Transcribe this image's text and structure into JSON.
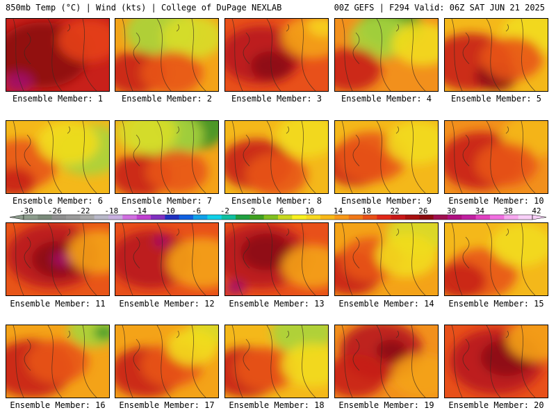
{
  "header": {
    "left": "850mb Temp (°C) | Wind (kts) | College of DuPage NEXLAB",
    "right": "00Z GEFS | F294 Valid: 06Z SAT JUN 21 2025"
  },
  "members": [
    {
      "label": "Ensemble Member: 1",
      "base": "#c8201a",
      "blobs": [
        [
          "#8c0d12",
          0.35,
          0.5,
          0.45
        ],
        [
          "#a3106a",
          0.12,
          0.88,
          0.14
        ],
        [
          "#e5401a",
          0.8,
          0.3,
          0.3
        ]
      ]
    },
    {
      "label": "Ensemble Member: 2",
      "base": "#f4a318",
      "blobs": [
        [
          "#a8d43c",
          0.45,
          0.18,
          0.35
        ],
        [
          "#d8dd2a",
          0.75,
          0.25,
          0.3
        ],
        [
          "#c8201a",
          0.2,
          0.75,
          0.3
        ],
        [
          "#e85518",
          0.55,
          0.75,
          0.3
        ]
      ]
    },
    {
      "label": "Ensemble Member: 3",
      "base": "#e8501a",
      "blobs": [
        [
          "#b8141c",
          0.35,
          0.5,
          0.4
        ],
        [
          "#8c0d12",
          0.45,
          0.65,
          0.2
        ],
        [
          "#f4a318",
          0.85,
          0.25,
          0.3
        ],
        [
          "#f7d21c",
          0.95,
          0.1,
          0.15
        ]
      ]
    },
    {
      "label": "Ensemble Member: 4",
      "base": "#f2901c",
      "blobs": [
        [
          "#4aa028",
          0.55,
          0.1,
          0.3
        ],
        [
          "#a8d43c",
          0.45,
          0.25,
          0.3
        ],
        [
          "#f2dc1c",
          0.85,
          0.35,
          0.3
        ],
        [
          "#c8201a",
          0.15,
          0.7,
          0.3
        ]
      ]
    },
    {
      "label": "Ensemble Member: 5",
      "base": "#f4b81a",
      "blobs": [
        [
          "#c8201a",
          0.25,
          0.6,
          0.4
        ],
        [
          "#8c0d12",
          0.5,
          0.8,
          0.2
        ],
        [
          "#f2dc1c",
          0.85,
          0.2,
          0.3
        ],
        [
          "#e85518",
          0.65,
          0.55,
          0.3
        ]
      ]
    },
    {
      "label": "Ensemble Member: 6",
      "base": "#f4b81a",
      "blobs": [
        [
          "#a8d43c",
          0.8,
          0.4,
          0.35
        ],
        [
          "#e85518",
          0.15,
          0.6,
          0.35
        ],
        [
          "#c8201a",
          0.08,
          0.85,
          0.2
        ],
        [
          "#f2dc1c",
          0.6,
          0.3,
          0.3
        ]
      ]
    },
    {
      "label": "Ensemble Member: 7",
      "base": "#f4a318",
      "blobs": [
        [
          "#3a9628",
          0.75,
          0.05,
          0.35
        ],
        [
          "#a8d43c",
          0.5,
          0.2,
          0.35
        ],
        [
          "#d8dd2a",
          0.3,
          0.15,
          0.3
        ],
        [
          "#c8201a",
          0.25,
          0.75,
          0.3
        ],
        [
          "#e85518",
          0.6,
          0.7,
          0.3
        ]
      ]
    },
    {
      "label": "Ensemble Member: 8",
      "base": "#f4b81a",
      "blobs": [
        [
          "#c8201a",
          0.3,
          0.6,
          0.35
        ],
        [
          "#e85518",
          0.5,
          0.75,
          0.3
        ],
        [
          "#f2dc1c",
          0.8,
          0.2,
          0.3
        ]
      ]
    },
    {
      "label": "Ensemble Member: 9",
      "base": "#f4b81a",
      "blobs": [
        [
          "#c8201a",
          0.2,
          0.6,
          0.3
        ],
        [
          "#e85518",
          0.35,
          0.5,
          0.35
        ],
        [
          "#f2dc1c",
          0.8,
          0.3,
          0.3
        ]
      ]
    },
    {
      "label": "Ensemble Member: 10",
      "base": "#f2901c",
      "blobs": [
        [
          "#c8201a",
          0.35,
          0.55,
          0.4
        ],
        [
          "#f4b81a",
          0.85,
          0.2,
          0.3
        ],
        [
          "#e85518",
          0.6,
          0.6,
          0.3
        ]
      ]
    },
    {
      "label": "Ensemble Member: 11",
      "base": "#e85518",
      "blobs": [
        [
          "#b8141c",
          0.45,
          0.45,
          0.45
        ],
        [
          "#8c0d12",
          0.5,
          0.5,
          0.25
        ],
        [
          "#a3106a",
          0.55,
          0.5,
          0.1
        ],
        [
          "#f4a318",
          0.9,
          0.4,
          0.3
        ]
      ]
    },
    {
      "label": "Ensemble Member: 12",
      "base": "#e8501a",
      "blobs": [
        [
          "#b8141c",
          0.35,
          0.5,
          0.4
        ],
        [
          "#a3106a",
          0.45,
          0.25,
          0.08
        ],
        [
          "#f4a318",
          0.85,
          0.55,
          0.35
        ]
      ]
    },
    {
      "label": "Ensemble Member: 13",
      "base": "#e8501a",
      "blobs": [
        [
          "#b8141c",
          0.35,
          0.45,
          0.45
        ],
        [
          "#8c0d12",
          0.4,
          0.4,
          0.25
        ],
        [
          "#a3106a",
          0.1,
          0.9,
          0.1
        ],
        [
          "#f4a318",
          0.85,
          0.6,
          0.3
        ]
      ]
    },
    {
      "label": "Ensemble Member: 14",
      "base": "#f4a318",
      "blobs": [
        [
          "#d8dd2a",
          0.8,
          0.15,
          0.3
        ],
        [
          "#c8201a",
          0.15,
          0.7,
          0.3
        ],
        [
          "#e85518",
          0.35,
          0.5,
          0.3
        ],
        [
          "#f2dc1c",
          0.7,
          0.45,
          0.3
        ]
      ]
    },
    {
      "label": "Ensemble Member: 15",
      "base": "#f4b81a",
      "blobs": [
        [
          "#e85518",
          0.35,
          0.7,
          0.35
        ],
        [
          "#c8201a",
          0.15,
          0.8,
          0.25
        ],
        [
          "#f2dc1c",
          0.75,
          0.3,
          0.3
        ]
      ]
    },
    {
      "label": "Ensemble Member: 16",
      "base": "#f4a318",
      "blobs": [
        [
          "#c8201a",
          0.25,
          0.6,
          0.4
        ],
        [
          "#a8d43c",
          0.85,
          0.05,
          0.25
        ],
        [
          "#3a9628",
          0.95,
          0.1,
          0.1
        ],
        [
          "#e85518",
          0.5,
          0.5,
          0.3
        ]
      ]
    },
    {
      "label": "Ensemble Member: 17",
      "base": "#f4a318",
      "blobs": [
        [
          "#c8201a",
          0.3,
          0.65,
          0.35
        ],
        [
          "#e85518",
          0.55,
          0.55,
          0.3
        ],
        [
          "#d8dd2a",
          0.9,
          0.1,
          0.2
        ],
        [
          "#f2dc1c",
          0.75,
          0.3,
          0.25
        ]
      ]
    },
    {
      "label": "Ensemble Member: 18",
      "base": "#f4b81a",
      "blobs": [
        [
          "#c8201a",
          0.2,
          0.65,
          0.35
        ],
        [
          "#e85518",
          0.4,
          0.6,
          0.3
        ],
        [
          "#a8d43c",
          0.75,
          0.1,
          0.3
        ],
        [
          "#f2dc1c",
          0.85,
          0.55,
          0.3
        ]
      ]
    },
    {
      "label": "Ensemble Member: 19",
      "base": "#f2901c",
      "blobs": [
        [
          "#b8141c",
          0.45,
          0.35,
          0.4
        ],
        [
          "#8c0d12",
          0.55,
          0.35,
          0.15
        ],
        [
          "#c8201a",
          0.2,
          0.7,
          0.3
        ],
        [
          "#f4a318",
          0.85,
          0.7,
          0.3
        ]
      ]
    },
    {
      "label": "Ensemble Member: 20",
      "base": "#e8501a",
      "blobs": [
        [
          "#b8141c",
          0.5,
          0.5,
          0.45
        ],
        [
          "#8c0d12",
          0.6,
          0.45,
          0.25
        ],
        [
          "#f4a318",
          0.9,
          0.2,
          0.3
        ]
      ]
    }
  ],
  "colorbar": {
    "ticks": [
      "-30",
      "-26",
      "-22",
      "-18",
      "-14",
      "-10",
      "-6",
      "-2",
      "2",
      "6",
      "10",
      "14",
      "18",
      "22",
      "26",
      "30",
      "34",
      "38",
      "42"
    ],
    "colors": [
      "#8c9c8c",
      "#7a8a7a",
      "#8e8e8e",
      "#9a9a9a",
      "#a8a8a8",
      "#b8b8c8",
      "#c8b0e0",
      "#d070e0",
      "#c040d0",
      "#8030c0",
      "#2030c0",
      "#1060e0",
      "#10a0e8",
      "#10d0e8",
      "#10c0a0",
      "#20a040",
      "#40a020",
      "#80c020",
      "#c8d820",
      "#f8f020",
      "#f8d820",
      "#f8b818",
      "#f89818",
      "#f07818",
      "#e85018",
      "#e02818",
      "#c81818",
      "#a81010",
      "#8c0c10",
      "#a01050",
      "#b01080",
      "#c020a0",
      "#e040c0",
      "#f070e0",
      "#f8a8f0",
      "#f8d0f8"
    ]
  }
}
